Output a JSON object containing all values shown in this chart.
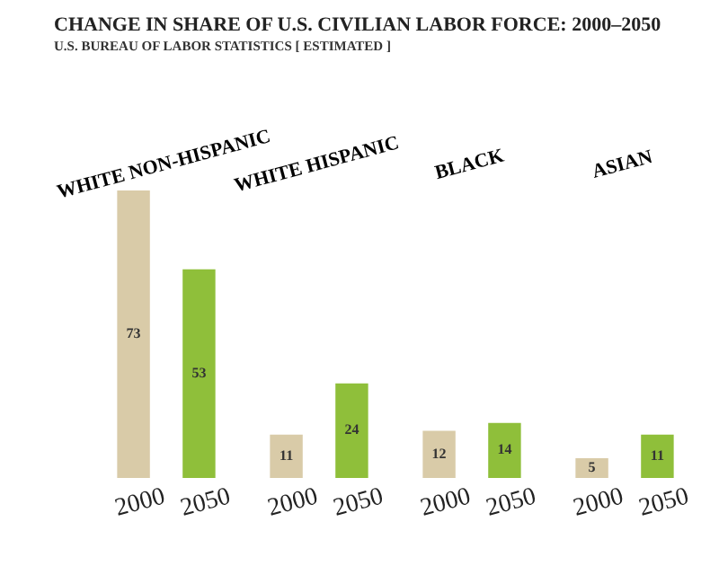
{
  "chart_data": {
    "type": "bar",
    "title": "CHANGE IN SHARE OF U.S. CIVILIAN LABOR FORCE: 2000–2050",
    "subtitle": "U.S. BUREAU OF LABOR STATISTICS [ ESTIMATED ]",
    "categories": [
      "WHITE NON-HISPANIC",
      "WHITE HISPANIC",
      "BLACK",
      "ASIAN"
    ],
    "series": [
      {
        "name": "2000",
        "color": "#d9cba8",
        "values": [
          73,
          11,
          12,
          5
        ]
      },
      {
        "name": "2050",
        "color": "#8fbf3a",
        "values": [
          53,
          24,
          14,
          11
        ]
      }
    ],
    "data_labels": true
  }
}
